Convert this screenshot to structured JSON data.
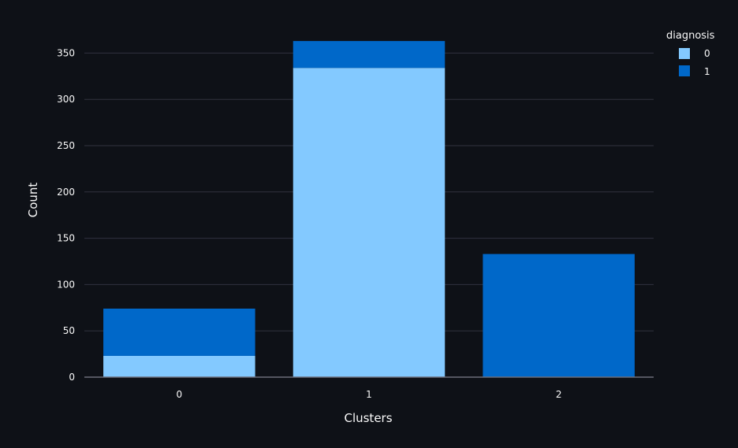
{
  "chart_data": {
    "type": "bar",
    "barmode": "stack",
    "categories": [
      "0",
      "1",
      "2"
    ],
    "series": [
      {
        "name": "0",
        "values": [
          23,
          334,
          0
        ]
      },
      {
        "name": "1",
        "values": [
          51,
          29,
          133
        ]
      }
    ],
    "xlabel": "Clusters",
    "ylabel": "Count",
    "ylim": [
      0,
      375
    ],
    "yticks": [
      0,
      50,
      100,
      150,
      200,
      250,
      300,
      350
    ],
    "grid": true,
    "legend": {
      "title": "diagnosis",
      "placement": "top-right"
    },
    "colors": {
      "series_0": "#83c9ff",
      "series_1": "#0068c9",
      "background": "#0e1117",
      "grid": "#31333f",
      "text": "#fafafa"
    }
  }
}
